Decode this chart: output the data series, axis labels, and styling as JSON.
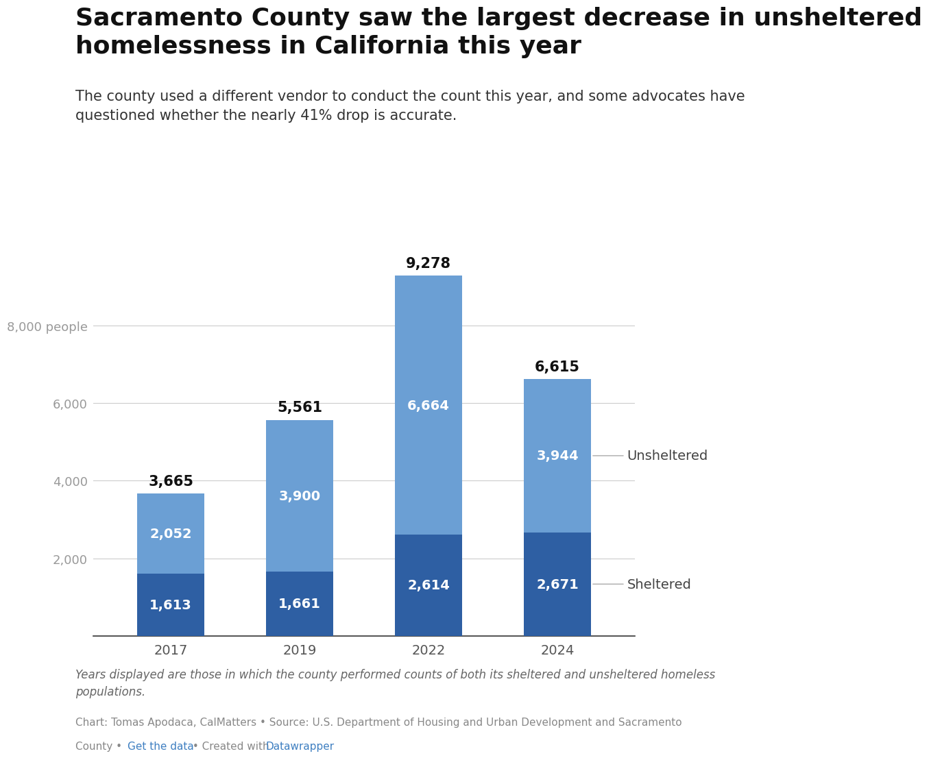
{
  "title": "Sacramento County saw the largest decrease in unsheltered\nhomelessness in California this year",
  "subtitle": "The county used a different vendor to conduct the count this year, and some advocates have\nquestioned whether the nearly 41% drop is accurate.",
  "years": [
    "2017",
    "2019",
    "2022",
    "2024"
  ],
  "sheltered": [
    1613,
    1661,
    2614,
    2671
  ],
  "unsheltered": [
    2052,
    3900,
    6664,
    3944
  ],
  "totals": [
    3665,
    5561,
    9278,
    6615
  ],
  "sheltered_color": "#2e5fa3",
  "unsheltered_color": "#6b9fd4",
  "ytick_values": [
    2000,
    4000,
    6000,
    8000
  ],
  "ytick_labels": [
    "2,000",
    "4,000",
    "6,000",
    "8,000 people"
  ],
  "background_color": "#ffffff",
  "title_fontsize": 26,
  "subtitle_fontsize": 15,
  "tick_fontsize": 13,
  "bar_label_fontsize": 14,
  "total_label_fontsize": 15,
  "legend_fontsize": 14,
  "footnote_italic": "Years displayed are those in which the county performed counts of both its sheltered and unsheltered homeless\npopulations.",
  "footnote_source_line1": "Chart: Tomas Apodaca, CalMatters • Source: U.S. Department of Housing and Urban Development and Sacramento",
  "footnote_source_line2_pre": "County • ",
  "footnote_link1": "Get the data",
  "footnote_link2_pre": " • Created with ",
  "footnote_link3": "Datawrapper",
  "footnote_fontsize": 12
}
